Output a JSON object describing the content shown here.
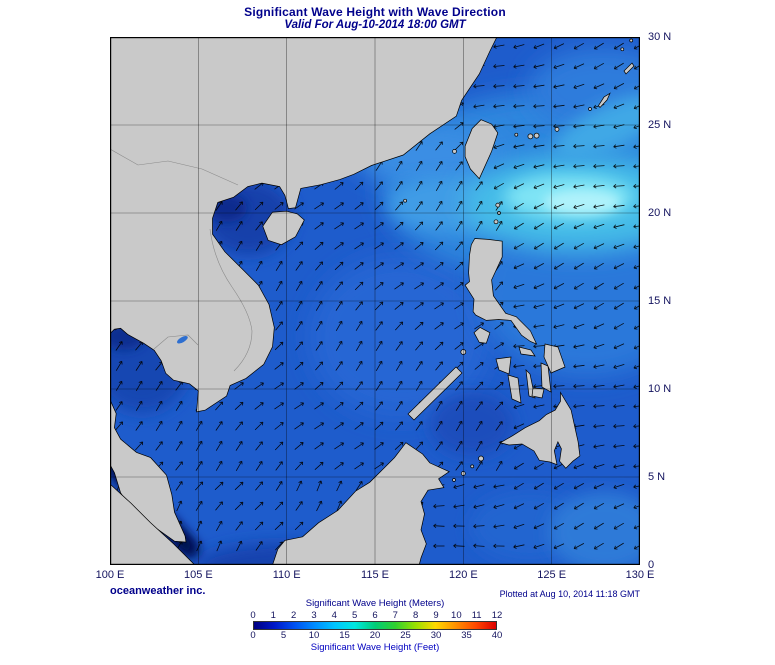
{
  "header": {
    "title": "Significant Wave Height with Wave Direction",
    "subtitle": "Valid For Aug-10-2014 18:00 GMT"
  },
  "map": {
    "x_axis_labels": [
      "100 E",
      "105 E",
      "110 E",
      "115 E",
      "120 E",
      "125 E",
      "130 E"
    ],
    "y_axis_labels": [
      "30 N",
      "25 N",
      "20 N",
      "15 N",
      "10 N",
      "5 N",
      "0"
    ]
  },
  "footer": {
    "credit": "oceanweather inc.",
    "plotted_at": "Plotted at Aug 10, 2014 11:18 GMT"
  },
  "legend": {
    "meters_title": "Significant Wave Height (Meters)",
    "feet_title": "Significant Wave Height (Feet)",
    "meters_ticks": [
      "0",
      "1",
      "2",
      "3",
      "4",
      "5",
      "6",
      "7",
      "8",
      "9",
      "10",
      "11",
      "12"
    ],
    "feet_ticks": [
      "0",
      "5",
      "10",
      "15",
      "20",
      "25",
      "30",
      "35",
      "40"
    ],
    "gradient_colors": [
      "#000080",
      "#0018c8",
      "#0050f0",
      "#008cff",
      "#00c4ff",
      "#00e8e0",
      "#00cc78",
      "#30d030",
      "#98e000",
      "#ffd800",
      "#ff9000",
      "#ff4800",
      "#dc0000"
    ]
  },
  "colors": {
    "title_text": "#00008b",
    "axis_text": "#14145f",
    "ocean_base": "#1e5ccc",
    "land": "#c9c9c9",
    "arrow": "#000000"
  }
}
